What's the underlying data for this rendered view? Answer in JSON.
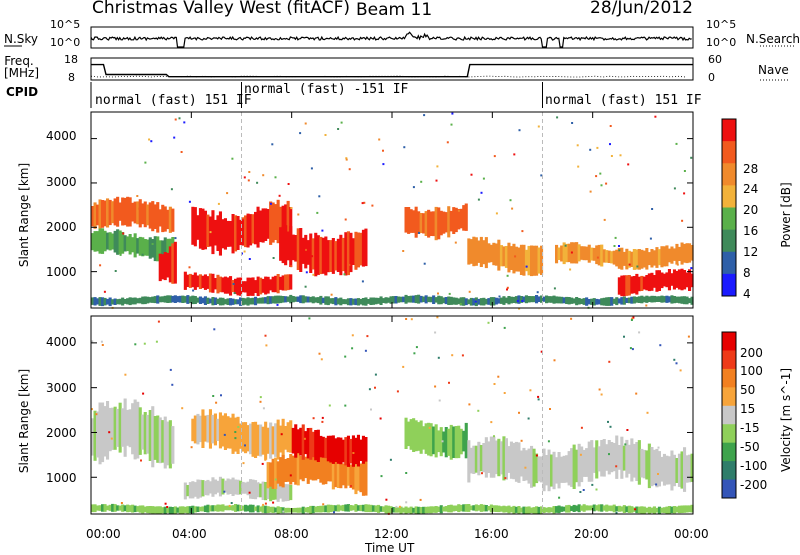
{
  "header": {
    "station": "Christmas Valley West (fitACF)",
    "beam": "Beam 11",
    "date": "28/Jun/2012"
  },
  "chart_data": [
    {
      "type": "line",
      "panel": "noise",
      "left_label": "N.Sky",
      "right_label": "N.Search",
      "left_ticks": [
        "10^5",
        "10^0"
      ],
      "right_ticks": [
        "10^5",
        "10^0"
      ],
      "x_range_hours": [
        0,
        24
      ],
      "gaps_hours": [
        [
          3.4,
          3.7
        ],
        [
          18.0,
          18.2
        ],
        [
          18.7,
          18.85
        ]
      ]
    },
    {
      "type": "line",
      "panel": "frequency",
      "left_label": "Freq. [MHz]",
      "right_label": "Nave",
      "left_ticks": [
        "18",
        "8"
      ],
      "right_ticks": [
        "60",
        "0"
      ],
      "series": [
        {
          "values_x": [
            0,
            0.5,
            0.6,
            3.0,
            3.1,
            15.0,
            15.1,
            24
          ],
          "values_y": [
            15,
            15,
            10.5,
            10.5,
            9.5,
            9.5,
            15,
            15
          ]
        }
      ]
    },
    {
      "type": "table",
      "panel": "cpid",
      "label": "CPID",
      "segments": [
        {
          "text": "normal (fast) 151 IF",
          "start": 0,
          "end": 6.0
        },
        {
          "text": "normal (fast) -151 IF",
          "start": 6.0,
          "end": 18.0
        },
        {
          "text": "normal (fast) 151 IF",
          "start": 18.0,
          "end": 24
        }
      ]
    },
    {
      "type": "heatmap",
      "panel": "power",
      "ylabel": "Slant Range [km]",
      "yticks": [
        1000,
        2000,
        3000,
        4000
      ],
      "ylim": [
        180,
        4600
      ],
      "xlim": [
        0,
        24
      ],
      "colorbar": {
        "label": "Power [dB]",
        "ticks": [
          "4",
          "8",
          "12",
          "16",
          "20",
          "24",
          "28"
        ],
        "colors": [
          "#1b1bff",
          "#2e5fa8",
          "#3f8a5a",
          "#5ab04a",
          "#f2b23a",
          "#f08a2c",
          "#f25a1e",
          "#ee1010"
        ]
      },
      "regions": [
        {
          "x": [
            0.0,
            3.3
          ],
          "y": [
            1900,
            2600
          ],
          "level": 6
        },
        {
          "x": [
            0.0,
            3.3
          ],
          "y": [
            1300,
            1900
          ],
          "level": 3
        },
        {
          "x": [
            2.7,
            3.4
          ],
          "y": [
            700,
            1700
          ],
          "level": 7
        },
        {
          "x": [
            3.7,
            8.0
          ],
          "y": [
            500,
            950
          ],
          "level": 7
        },
        {
          "x": [
            4.0,
            8.0
          ],
          "y": [
            1500,
            2500
          ],
          "level": 7
        },
        {
          "x": [
            7.5,
            11.0
          ],
          "y": [
            1000,
            2000
          ],
          "level": 7
        },
        {
          "x": [
            12.5,
            15.0
          ],
          "y": [
            1800,
            2600
          ],
          "level": 6
        },
        {
          "x": [
            15.0,
            18.0
          ],
          "y": [
            1000,
            1700
          ],
          "level": 5
        },
        {
          "x": [
            18.5,
            24.0
          ],
          "y": [
            1100,
            1600
          ],
          "level": 5
        },
        {
          "x": [
            21.0,
            24.0
          ],
          "y": [
            500,
            1000
          ],
          "level": 7
        },
        {
          "x": [
            0.0,
            24.0
          ],
          "y": [
            250,
            450
          ],
          "level": 2
        }
      ]
    },
    {
      "type": "heatmap",
      "panel": "velocity",
      "xlabel": "Time UT",
      "ylabel": "Slant Range [km]",
      "yticks": [
        1000,
        2000,
        3000,
        4000
      ],
      "xticks": [
        "00:00",
        "04:00",
        "08:00",
        "12:00",
        "16:00",
        "20:00",
        "00:00"
      ],
      "ylim": [
        180,
        4600
      ],
      "xlim": [
        0,
        24
      ],
      "colorbar": {
        "label": "Velocity [m s^-1]",
        "ticks": [
          "200",
          "100",
          "50",
          "15",
          "-15",
          "-50",
          "-100",
          "-200"
        ],
        "colors": [
          "#3455b8",
          "#2f7d6a",
          "#3ea34c",
          "#8fd05a",
          "#c8c8c8",
          "#f7a43a",
          "#f28020",
          "#ee3a18",
          "#e60000"
        ]
      },
      "regions": [
        {
          "x": [
            0.0,
            3.3
          ],
          "y": [
            1200,
            2600
          ],
          "level": 4
        },
        {
          "x": [
            3.7,
            8.0
          ],
          "y": [
            500,
            950
          ],
          "level": 4
        },
        {
          "x": [
            4.0,
            8.0
          ],
          "y": [
            1500,
            2400
          ],
          "level": 5
        },
        {
          "x": [
            7.0,
            11.0
          ],
          "y": [
            700,
            1500
          ],
          "level": 6
        },
        {
          "x": [
            8.0,
            11.0
          ],
          "y": [
            1300,
            2100
          ],
          "level": 8
        },
        {
          "x": [
            12.5,
            15.0
          ],
          "y": [
            1500,
            2300
          ],
          "level": 3
        },
        {
          "x": [
            15.0,
            24.0
          ],
          "y": [
            800,
            1800
          ],
          "level": 4
        },
        {
          "x": [
            0.0,
            24.0
          ],
          "y": [
            200,
            380
          ],
          "level": 3
        }
      ]
    }
  ]
}
